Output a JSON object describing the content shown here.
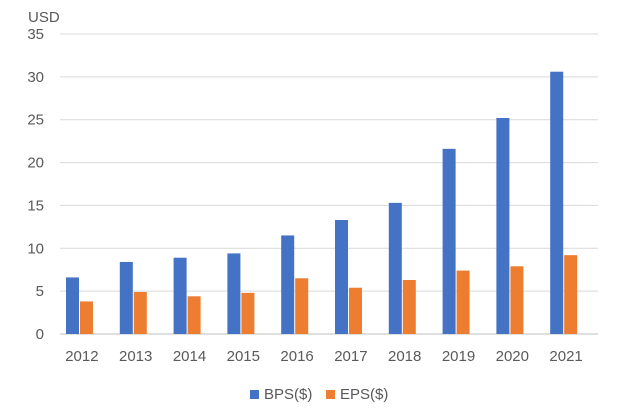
{
  "chart_data": {
    "type": "bar",
    "ylabel": "USD",
    "ylim": [
      0,
      35
    ],
    "yticks": [
      0,
      5,
      10,
      15,
      20,
      25,
      30,
      35
    ],
    "grid": true,
    "legend_position": "bottom",
    "categories": [
      "2012",
      "2013",
      "2014",
      "2015",
      "2016",
      "2017",
      "2018",
      "2019",
      "2020",
      "2021"
    ],
    "series": [
      {
        "name": "BPS($)",
        "color": "#4472C4",
        "values": [
          6.6,
          8.4,
          8.9,
          9.4,
          11.5,
          13.3,
          15.3,
          21.6,
          25.2,
          30.6
        ]
      },
      {
        "name": "EPS($)",
        "color": "#ED7D31",
        "values": [
          3.8,
          4.9,
          4.4,
          4.8,
          6.5,
          5.4,
          6.3,
          7.4,
          7.9,
          9.2
        ]
      }
    ]
  }
}
